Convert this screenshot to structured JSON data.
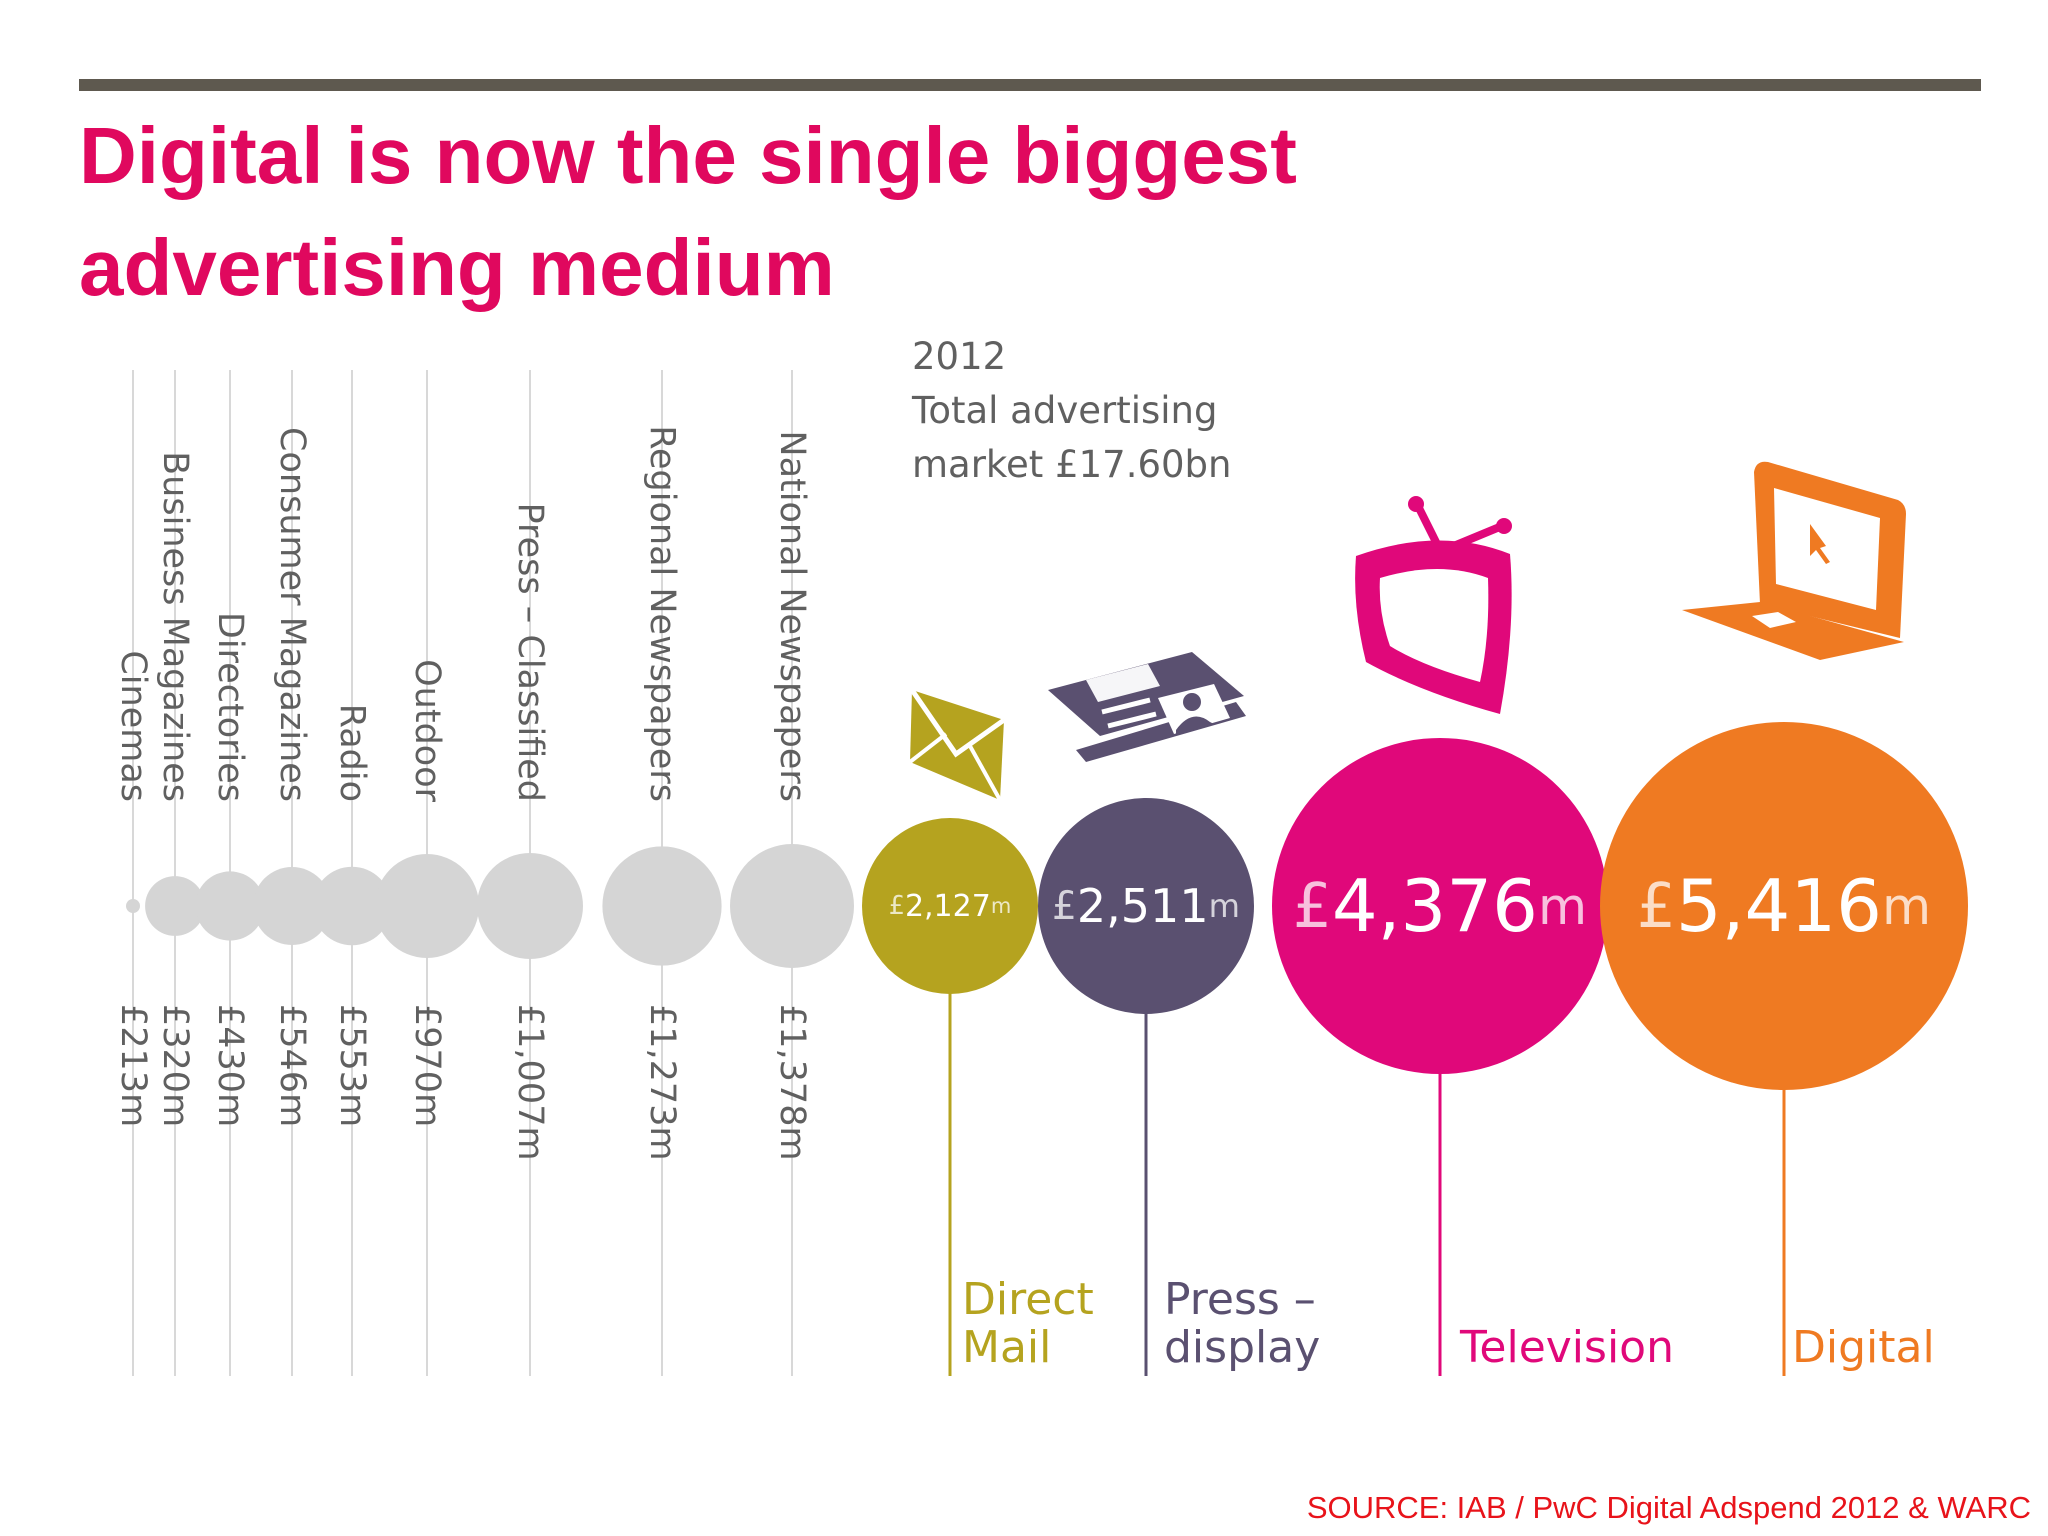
{
  "title_line1": "Digital is now the single biggest",
  "title_line2": "advertising medium",
  "total": {
    "line1": "2012",
    "line2": "Total advertising",
    "line3": "market £17.60bn"
  },
  "source": "SOURCE: IAB / PwC Digital Adspend 2012 & WARC",
  "colors": {
    "title": "#e0085e",
    "small_media": "#d5d5d5",
    "direct_mail": "#b5a31f",
    "press_display": "#5a5070",
    "television": "#e0087a",
    "digital": "#ef7a22",
    "source": "#e8131a"
  },
  "chart_data": {
    "type": "bubble",
    "title": "Digital is now the single biggest advertising medium",
    "total_label": "2012 Total advertising market £17.60bn",
    "unit": "£m",
    "categories": [
      "Cinemas",
      "Business Magazines",
      "Directories",
      "Consumer Magazines",
      "Radio",
      "Outdoor",
      "Press – Classified",
      "Regional Newspapers",
      "National Newspapers",
      "Direct Mail",
      "Press – display",
      "Television",
      "Digital"
    ],
    "values": [
      213,
      320,
      430,
      546,
      553,
      970,
      1007,
      1273,
      1378,
      2127,
      2511,
      4376,
      5416
    ],
    "small_items": [
      {
        "name": "Cinemas",
        "value": 213,
        "label": "£213m"
      },
      {
        "name": "Business Magazines",
        "value": 320,
        "label": "£320m"
      },
      {
        "name": "Directories",
        "value": 430,
        "label": "£430m"
      },
      {
        "name": "Consumer Magazines",
        "value": 546,
        "label": "£546m"
      },
      {
        "name": "Radio",
        "value": 553,
        "label": "£553m"
      },
      {
        "name": "Outdoor",
        "value": 970,
        "label": "£970m"
      },
      {
        "name": "Press – Classified",
        "value": 1007,
        "label": "£1,007m"
      },
      {
        "name": "Regional Newspapers",
        "value": 1273,
        "label": "£1,273m"
      },
      {
        "name": "National Newspapers",
        "value": 1378,
        "label": "£1,378m"
      }
    ],
    "big_items": [
      {
        "name_lines": [
          "Direct",
          "Mail"
        ],
        "value": 2127,
        "pound": "£",
        "num": "2,127",
        "m": "m",
        "color": "#b5a31f",
        "icon": "envelope-icon"
      },
      {
        "name_lines": [
          "Press –",
          "display"
        ],
        "value": 2511,
        "pound": "£",
        "num": "2,511",
        "m": "m",
        "color": "#5a5070",
        "icon": "newspaper-icon"
      },
      {
        "name_lines": [
          "Television"
        ],
        "value": 4376,
        "pound": "£",
        "num": "4,376",
        "m": "m",
        "color": "#e0087a",
        "icon": "tv-icon"
      },
      {
        "name_lines": [
          "Digital"
        ],
        "value": 5416,
        "pound": "£",
        "num": "5,416",
        "m": "m",
        "color": "#ef7a22",
        "icon": "laptop-icon"
      }
    ]
  }
}
